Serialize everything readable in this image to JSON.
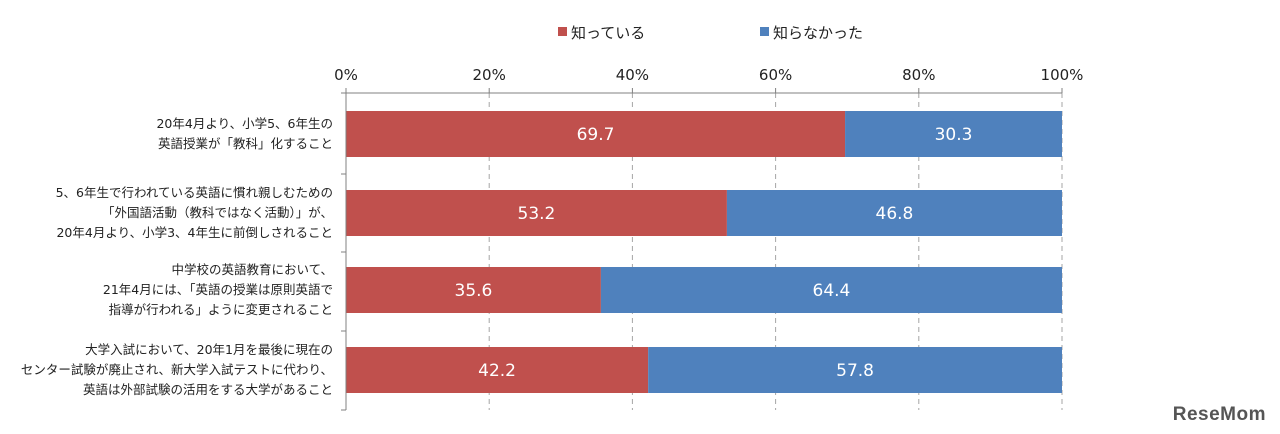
{
  "chart_data": {
    "type": "bar",
    "orientation": "horizontal",
    "stacked": true,
    "title": "",
    "xlabel": "",
    "ylabel": "",
    "xlim": [
      0,
      100
    ],
    "x_ticks": [
      "0%",
      "20%",
      "40%",
      "60%",
      "80%",
      "100%"
    ],
    "grid": true,
    "legend_position": "top",
    "categories": [
      [
        "20年4月より、小学5、6年生の",
        "英語授業が「教科」化すること"
      ],
      [
        "5、6年生で行われている英語に慣れ親しむための",
        "「外国語活動（教科ではなく活動）」が、",
        "20年4月より、小学3、4年生に前倒しされること"
      ],
      [
        "中学校の英語教育において、",
        "21年4月には、「英語の授業は原則英語で",
        "指導が行われる」ように変更されること"
      ],
      [
        "大学入試において、20年1月を最後に現在の",
        "センター試験が廃止され、新大学入試テストに代わり、",
        "英語は外部試験の活用をする大学があること"
      ]
    ],
    "series": [
      {
        "name": "知っている",
        "color": "#c0504d",
        "values": [
          69.7,
          53.2,
          35.6,
          42.2
        ]
      },
      {
        "name": "知らなかった",
        "color": "#4f81bd",
        "values": [
          30.3,
          46.8,
          64.4,
          57.8
        ]
      }
    ]
  },
  "watermark": {
    "text": "ReseMom"
  }
}
